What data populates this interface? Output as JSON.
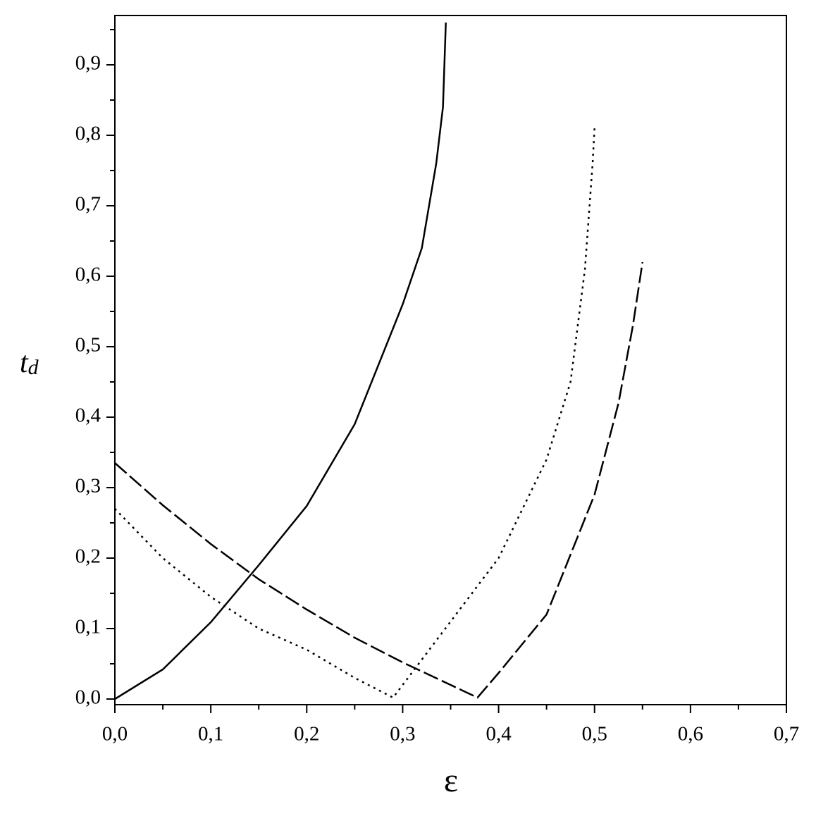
{
  "chart_data": {
    "type": "line",
    "xlabel": "ε",
    "ylabel": "t",
    "ylabel_subscript": "d",
    "xlim": [
      0,
      0.7
    ],
    "ylim": [
      -0.008,
      0.97
    ],
    "xticks": [
      {
        "value": 0,
        "label": "0,0"
      },
      {
        "value": 0.1,
        "label": "0,1"
      },
      {
        "value": 0.2,
        "label": "0,2"
      },
      {
        "value": 0.3,
        "label": "0,3"
      },
      {
        "value": 0.4,
        "label": "0,4"
      },
      {
        "value": 0.5,
        "label": "0,5"
      },
      {
        "value": 0.6,
        "label": "0,6"
      },
      {
        "value": 0.7,
        "label": "0,7"
      }
    ],
    "yticks": [
      {
        "value": 0,
        "label": "0,0"
      },
      {
        "value": 0.1,
        "label": "0,1"
      },
      {
        "value": 0.2,
        "label": "0,2"
      },
      {
        "value": 0.3,
        "label": "0,3"
      },
      {
        "value": 0.4,
        "label": "0,4"
      },
      {
        "value": 0.5,
        "label": "0,5"
      },
      {
        "value": 0.6,
        "label": "0,6"
      },
      {
        "value": 0.7,
        "label": "0,7"
      },
      {
        "value": 0.8,
        "label": "0,8"
      },
      {
        "value": 0.9,
        "label": "0,9"
      }
    ],
    "grid": false,
    "series": [
      {
        "color": "#000000",
        "style": "solid",
        "x": [
          0,
          0.05,
          0.1,
          0.15,
          0.2,
          0.25,
          0.3,
          0.32,
          0.335,
          0.342,
          0.345
        ],
        "values": [
          0,
          0.042,
          0.109,
          0.19,
          0.274,
          0.39,
          0.56,
          0.64,
          0.76,
          0.84,
          0.96
        ]
      },
      {
        "color": "#000000",
        "style": "dotted",
        "x": [
          0,
          0.05,
          0.1,
          0.15,
          0.2,
          0.25,
          0.29,
          0.3,
          0.35,
          0.4,
          0.45,
          0.475,
          0.49,
          0.498,
          0.5
        ],
        "values": [
          0.27,
          0.2,
          0.145,
          0.1,
          0.07,
          0.03,
          0.002,
          0.02,
          0.11,
          0.2,
          0.34,
          0.45,
          0.61,
          0.76,
          0.81
        ]
      },
      {
        "color": "#000000",
        "style": "dashed",
        "x": [
          0,
          0.05,
          0.1,
          0.15,
          0.2,
          0.25,
          0.3,
          0.35,
          0.378,
          0.4,
          0.45,
          0.5,
          0.525,
          0.54,
          0.55
        ],
        "values": [
          0.335,
          0.275,
          0.22,
          0.17,
          0.127,
          0.087,
          0.052,
          0.02,
          0.002,
          0.037,
          0.12,
          0.29,
          0.42,
          0.53,
          0.62
        ]
      }
    ]
  }
}
